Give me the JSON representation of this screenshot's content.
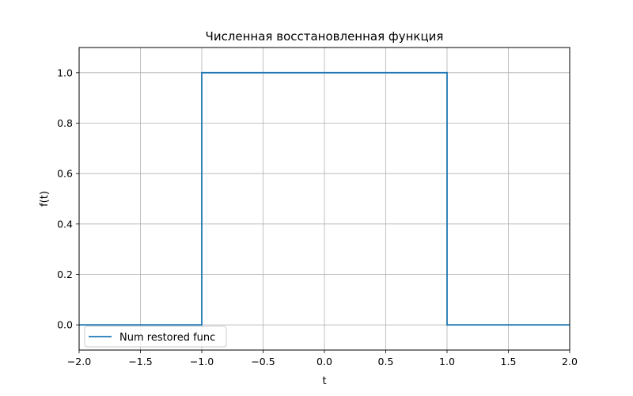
{
  "chart_data": {
    "type": "line",
    "title": "Численная восстановленная функция",
    "xlabel": "t",
    "ylabel": "f(t)",
    "xlim": [
      -2.0,
      2.0
    ],
    "ylim": [
      -0.1,
      1.1
    ],
    "grid": true,
    "legend_position": "lower-left",
    "xticks": [
      -2.0,
      -1.5,
      -1.0,
      -0.5,
      0.0,
      0.5,
      1.0,
      1.5,
      2.0
    ],
    "xtick_labels": [
      "−2.0",
      "−1.5",
      "−1.0",
      "−0.5",
      "0.0",
      "0.5",
      "1.0",
      "1.5",
      "2.0"
    ],
    "yticks": [
      0.0,
      0.2,
      0.4,
      0.6,
      0.8,
      1.0
    ],
    "ytick_labels": [
      "0.0",
      "0.2",
      "0.4",
      "0.6",
      "0.8",
      "1.0"
    ],
    "series": [
      {
        "name": "Num restored func",
        "color": "#1f77b4",
        "x": [
          -2.0,
          -1.0,
          -1.0,
          1.0,
          1.0,
          2.0
        ],
        "y": [
          0.0,
          0.0,
          1.0,
          1.0,
          0.0,
          0.0
        ]
      }
    ]
  }
}
